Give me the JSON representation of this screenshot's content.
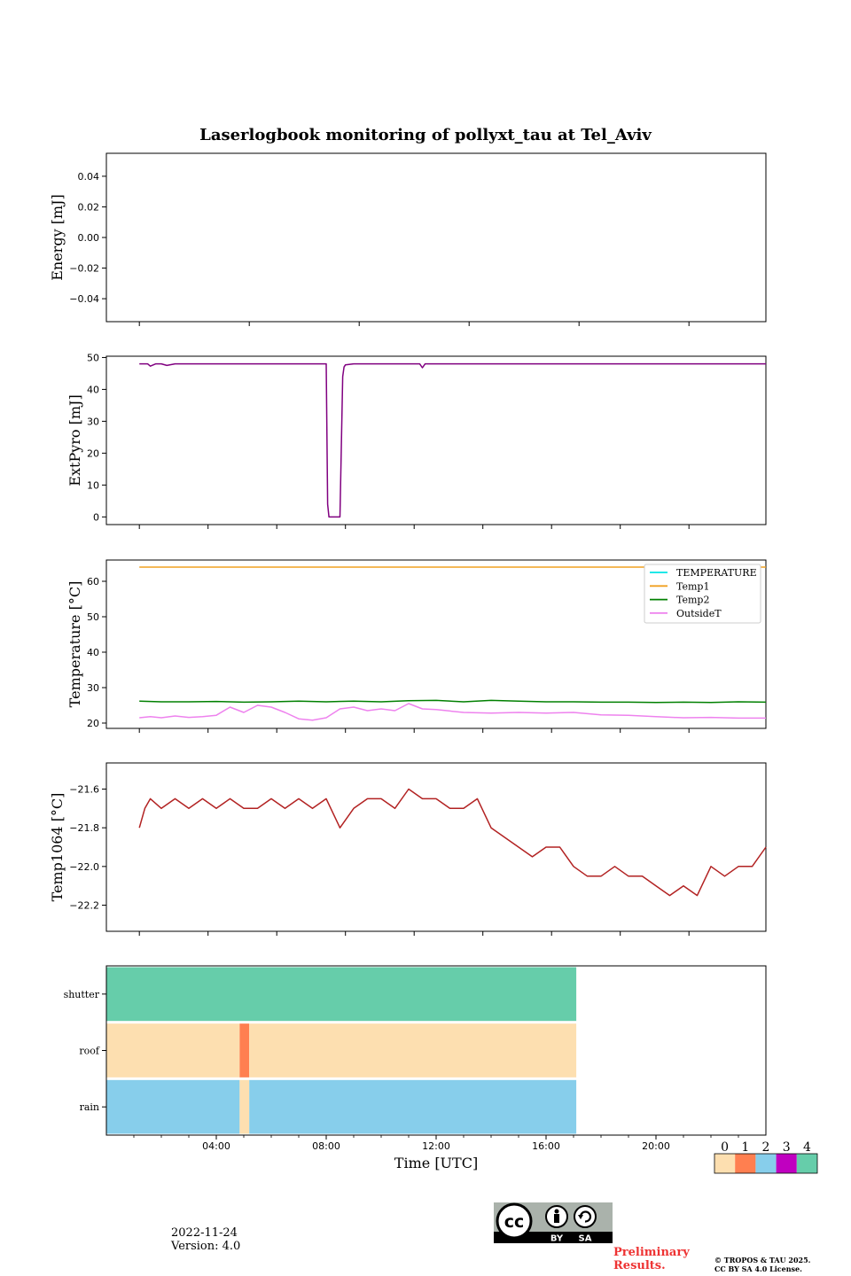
{
  "title": "Laserlogbook monitoring of pollyxt_tau at Tel_Aviv",
  "xlabel": "Time [UTC]",
  "footer": {
    "date": "2022-11-24",
    "version": "Version: 4.0",
    "preliminary_line1": "Preliminary",
    "preliminary_line2": "Results.",
    "copyright_line1": "© TROPOS & TAU 2025.",
    "copyright_line2": "CC BY SA 4.0 License."
  },
  "license_badge": {
    "text_by": "BY",
    "text_sa": "SA",
    "icon": "cc-by-sa-icon"
  },
  "chart_data": [
    {
      "type": "line",
      "id": "energy",
      "ylabel": "Energy [mJ]",
      "xlim": [
        0,
        24
      ],
      "ylim": [
        -0.055,
        0.055
      ],
      "yticks": [
        -0.04,
        -0.02,
        0.0,
        0.02,
        0.04
      ],
      "ytick_labels": [
        "−0.04",
        "−0.02",
        "0.00",
        "0.02",
        "0.04"
      ],
      "series": []
    },
    {
      "type": "line",
      "id": "extpyro",
      "ylabel": "ExtPyro [mJ]",
      "xlim": [
        0,
        24
      ],
      "ylim": [
        -2.4,
        50.4
      ],
      "yticks": [
        0,
        10,
        20,
        30,
        40,
        50
      ],
      "ytick_labels": [
        "0",
        "10",
        "20",
        "30",
        "40",
        "50"
      ],
      "series": [
        {
          "color": "#800080",
          "x": [
            1.2,
            1.5,
            1.6,
            1.8,
            2.0,
            2.2,
            2.5,
            3.0,
            3.5,
            4.0,
            5.0,
            6.0,
            7.0,
            8.0,
            8.05,
            8.1,
            8.5,
            8.6,
            8.65,
            8.7,
            9.0,
            10.0,
            11.0,
            11.4,
            11.5,
            11.6,
            12.0,
            14.0,
            16.0,
            18.0,
            20.0,
            22.0,
            24.0
          ],
          "y": [
            48,
            48,
            47.3,
            48,
            48,
            47.5,
            48,
            48,
            48,
            48,
            48,
            48,
            48,
            48,
            4,
            0,
            0,
            44,
            47,
            47.7,
            48,
            48,
            48,
            48,
            46.8,
            48,
            48,
            48,
            48,
            48,
            48,
            48,
            48
          ]
        }
      ]
    },
    {
      "type": "line",
      "id": "temperature",
      "ylabel": "Temperature [°C]",
      "xlim": [
        0,
        24
      ],
      "ylim": [
        18.5,
        66
      ],
      "yticks": [
        20,
        30,
        40,
        50,
        60
      ],
      "ytick_labels": [
        "20",
        "30",
        "40",
        "50",
        "60"
      ],
      "legend": {
        "placement": "upper-right",
        "entries": [
          {
            "name": "TEMPERATURE",
            "color": "#00e5e5"
          },
          {
            "name": "Temp1",
            "color": "#f0a020"
          },
          {
            "name": "Temp2",
            "color": "#008000"
          },
          {
            "name": "OutsideT",
            "color": "#ee82ee"
          }
        ]
      },
      "series": [
        {
          "name": "Temp1",
          "color": "#f0a020",
          "x": [
            1.2,
            24.0
          ],
          "y": [
            64,
            64
          ]
        },
        {
          "name": "Temp2",
          "color": "#008000",
          "x": [
            1.2,
            2.0,
            3.0,
            4.0,
            5.0,
            6.0,
            7.0,
            8.0,
            9.0,
            10.0,
            11.0,
            12.0,
            13.0,
            14.0,
            15.0,
            16.0,
            17.0,
            18.0,
            19.0,
            20.0,
            21.0,
            22.0,
            23.0,
            24.0
          ],
          "y": [
            26.2,
            26.0,
            26.0,
            26.1,
            25.9,
            26.0,
            26.2,
            26.0,
            26.2,
            26.0,
            26.3,
            26.4,
            26.0,
            26.4,
            26.2,
            26.0,
            26.0,
            25.9,
            25.9,
            25.8,
            25.9,
            25.8,
            26.0,
            25.9
          ]
        },
        {
          "name": "OutsideT",
          "color": "#ee82ee",
          "x": [
            1.2,
            1.6,
            2.0,
            2.5,
            3.0,
            3.5,
            4.0,
            4.5,
            5.0,
            5.5,
            6.0,
            6.5,
            7.0,
            7.5,
            8.0,
            8.5,
            9.0,
            9.5,
            10.0,
            10.5,
            11.0,
            11.5,
            12.0,
            13.0,
            14.0,
            15.0,
            16.0,
            17.0,
            18.0,
            19.0,
            20.0,
            21.0,
            22.0,
            23.0,
            24.0
          ],
          "y": [
            21.5,
            21.8,
            21.5,
            22.0,
            21.6,
            21.8,
            22.2,
            24.5,
            23.0,
            25.0,
            24.5,
            23.0,
            21.2,
            20.8,
            21.5,
            24.0,
            24.5,
            23.5,
            24.0,
            23.5,
            25.5,
            24.0,
            23.8,
            23.0,
            22.8,
            23.0,
            22.8,
            23.0,
            22.3,
            22.2,
            21.8,
            21.5,
            21.6,
            21.4,
            21.4
          ]
        }
      ]
    },
    {
      "type": "line",
      "id": "temp1064",
      "ylabel": "Temp1064 [°C]",
      "xlim": [
        0,
        24
      ],
      "ylim": [
        -22.335,
        -21.465
      ],
      "yticks": [
        -22.2,
        -22.0,
        -21.8,
        -21.6
      ],
      "ytick_labels": [
        "−22.2",
        "−22.0",
        "−21.8",
        "−21.6"
      ],
      "series": [
        {
          "color": "#b22222",
          "x": [
            1.2,
            1.4,
            1.6,
            2.0,
            2.5,
            3.0,
            3.5,
            4.0,
            4.5,
            5.0,
            5.5,
            6.0,
            6.5,
            7.0,
            7.5,
            8.0,
            8.5,
            9.0,
            9.5,
            10.0,
            10.5,
            11.0,
            11.5,
            12.0,
            12.5,
            13.0,
            13.5,
            14.0,
            14.5,
            15.0,
            15.5,
            16.0,
            16.5,
            17.0,
            17.5,
            18.0,
            18.5,
            19.0,
            19.5,
            20.0,
            20.5,
            21.0,
            21.5,
            22.0,
            22.5,
            23.0,
            23.5,
            24.0
          ],
          "y": [
            -21.8,
            -21.7,
            -21.65,
            -21.7,
            -21.65,
            -21.7,
            -21.65,
            -21.7,
            -21.65,
            -21.7,
            -21.7,
            -21.65,
            -21.7,
            -21.65,
            -21.7,
            -21.65,
            -21.8,
            -21.7,
            -21.65,
            -21.65,
            -21.7,
            -21.6,
            -21.65,
            -21.65,
            -21.7,
            -21.7,
            -21.65,
            -21.8,
            -21.85,
            -21.9,
            -21.95,
            -21.9,
            -21.9,
            -22.0,
            -22.05,
            -22.05,
            -22.0,
            -22.05,
            -22.05,
            -22.1,
            -22.15,
            -22.1,
            -22.15,
            -22.0,
            -22.05,
            -22.0,
            -22.0,
            -21.9
          ]
        }
      ]
    },
    {
      "type": "heatmap",
      "id": "status",
      "categories": [
        "shutter",
        "roof",
        "rain"
      ],
      "xlim": [
        0,
        24
      ],
      "xticks": [
        4,
        8,
        12,
        16,
        20
      ],
      "xtick_labels": [
        "04:00",
        "08:00",
        "12:00",
        "16:00",
        "20:00"
      ],
      "colorscale": {
        "ticks": [
          "0",
          "1",
          "2",
          "3",
          "4"
        ],
        "colors": [
          "#fddfb0",
          "#ff7f50",
          "#87ceeb",
          "#c000c0",
          "#66cdaa"
        ]
      },
      "rows": [
        {
          "name": "shutter",
          "segments": [
            {
              "start": 0,
              "end": 17.1,
              "value": 4
            }
          ]
        },
        {
          "name": "roof",
          "segments": [
            {
              "start": 0,
              "end": 4.85,
              "value": 0
            },
            {
              "start": 4.85,
              "end": 5.2,
              "value": 1
            },
            {
              "start": 5.2,
              "end": 17.1,
              "value": 0
            }
          ]
        },
        {
          "name": "rain",
          "segments": [
            {
              "start": 0,
              "end": 4.85,
              "value": 2
            },
            {
              "start": 4.85,
              "end": 5.2,
              "value": 0
            },
            {
              "start": 5.2,
              "end": 17.1,
              "value": 2
            }
          ]
        }
      ]
    }
  ]
}
